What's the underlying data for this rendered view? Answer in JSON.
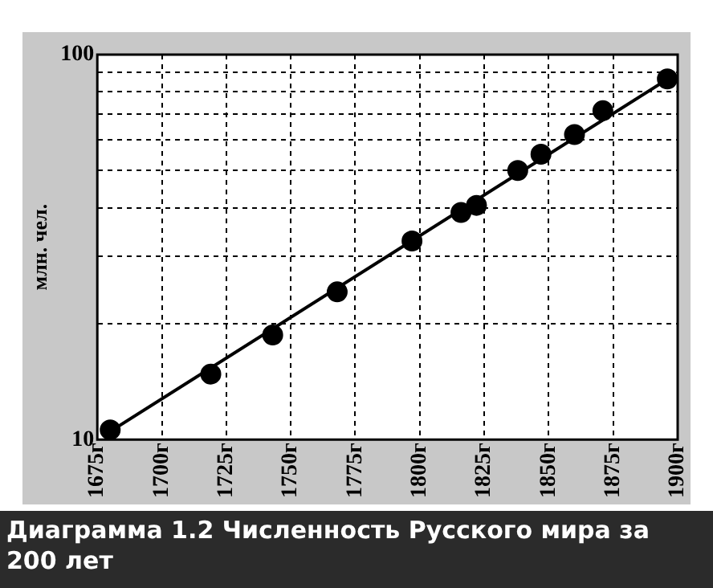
{
  "chart_data": {
    "type": "scatter",
    "title": "Диаграмма 1.2 Численность Русского мира за 200 лет",
    "ylabel": "млн. чел.",
    "series": [
      {
        "color": "#000000",
        "marker": "circle",
        "x": [
          1680,
          1719,
          1743,
          1768,
          1797,
          1816,
          1822,
          1838,
          1847,
          1860,
          1871,
          1896
        ],
        "values": [
          10.6,
          14.8,
          18.7,
          24.2,
          32.8,
          38.9,
          40.6,
          50,
          55.1,
          62,
          71.5,
          86.5
        ]
      },
      {
        "type": "line",
        "color": "#000000",
        "marker": "none",
        "line_style": "solid",
        "x": [
          1680,
          1898
        ],
        "values": [
          10.5,
          88
        ]
      }
    ],
    "log": "y",
    "xlim": [
      1675,
      1900
    ],
    "ylim": [
      10,
      100
    ],
    "xticks": [
      {
        "value": 1675,
        "label": "1675г"
      },
      {
        "value": 1700,
        "label": "1700г"
      },
      {
        "value": 1725,
        "label": "1725г"
      },
      {
        "value": 1750,
        "label": "1750г"
      },
      {
        "value": 1775,
        "label": "1775г"
      },
      {
        "value": 1800,
        "label": "1800г"
      },
      {
        "value": 1825,
        "label": "1825г"
      },
      {
        "value": 1850,
        "label": "1850г"
      },
      {
        "value": 1875,
        "label": "1875г"
      },
      {
        "value": 1900,
        "label": "1900г"
      }
    ],
    "yticks": [
      10,
      {
        "value": 20,
        "label": null
      },
      {
        "value": 30,
        "label": null
      },
      {
        "value": 40,
        "label": null
      },
      {
        "value": 50,
        "label": null
      },
      {
        "value": 60,
        "label": null
      },
      {
        "value": 70,
        "label": null
      },
      {
        "value": 80,
        "label": null
      },
      {
        "value": 90,
        "label": null
      },
      100
    ],
    "grid": true,
    "legend": false
  }
}
